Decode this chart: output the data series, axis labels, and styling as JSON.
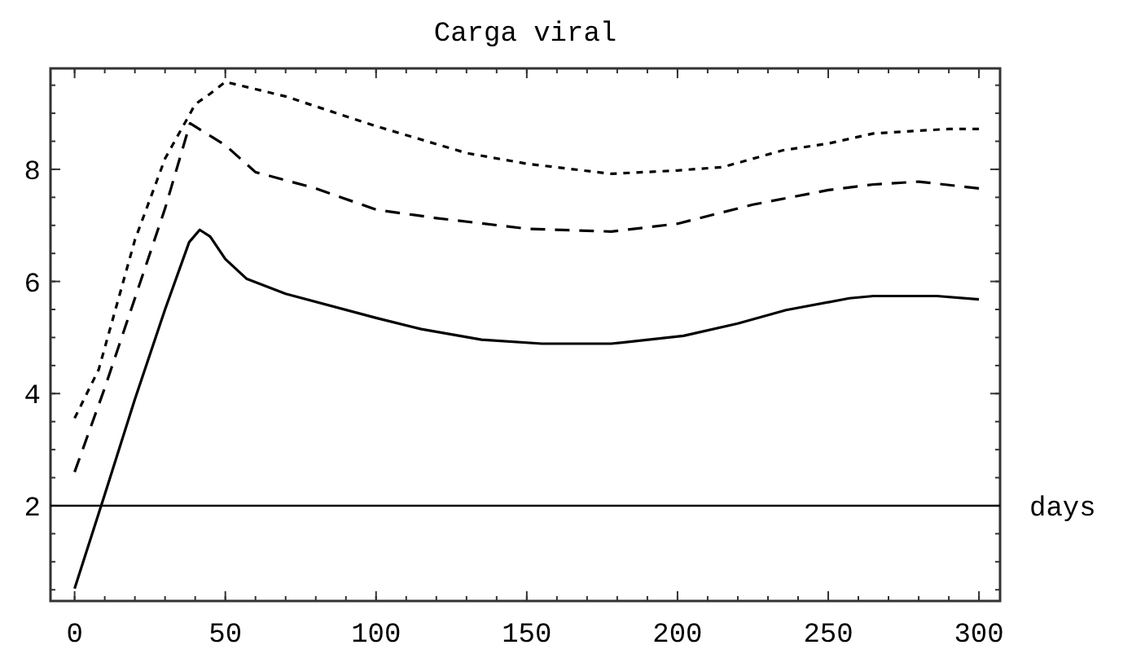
{
  "chart_data": {
    "type": "line",
    "title": "Carga viral",
    "xlim": [
      -8,
      307
    ],
    "ylim": [
      0.3,
      9.8
    ],
    "xticks": [
      0,
      50,
      100,
      150,
      200,
      250,
      300
    ],
    "yticks": [
      2,
      4,
      6,
      8
    ],
    "grid": false,
    "series": [
      {
        "color": "#000000",
        "line_style": "solid",
        "x": [
          0,
          10,
          20,
          30,
          38,
          41.5,
          45,
          50,
          57,
          70,
          100,
          115,
          135,
          155,
          178,
          202,
          220,
          236,
          257,
          265,
          286,
          300
        ],
        "values": [
          0.52,
          2.2,
          3.9,
          5.5,
          6.7,
          6.92,
          6.8,
          6.4,
          6.05,
          5.78,
          5.35,
          5.15,
          4.96,
          4.89,
          4.89,
          5.03,
          5.25,
          5.49,
          5.7,
          5.74,
          5.74,
          5.68
        ]
      },
      {
        "color": "#000000",
        "line_style": "dashed",
        "x": [
          0,
          10,
          20,
          30,
          38.3,
          50,
          60,
          80,
          100,
          120,
          150,
          178,
          200,
          225,
          250,
          265,
          280,
          300
        ],
        "values": [
          2.6,
          4.1,
          5.7,
          7.3,
          8.82,
          8.43,
          7.95,
          7.66,
          7.28,
          7.13,
          6.94,
          6.89,
          7.03,
          7.37,
          7.63,
          7.73,
          7.78,
          7.66
        ]
      },
      {
        "color": "#000000",
        "line_style": "dotted",
        "x": [
          0,
          8,
          20,
          30,
          40,
          45,
          50,
          70,
          100,
          130,
          150,
          178,
          200,
          215,
          235,
          250,
          265,
          290,
          300
        ],
        "values": [
          3.56,
          4.43,
          6.74,
          8.19,
          9.16,
          9.35,
          9.56,
          9.3,
          8.77,
          8.29,
          8.1,
          7.92,
          7.98,
          8.04,
          8.34,
          8.46,
          8.64,
          8.72,
          8.72
        ]
      }
    ],
    "ref_lines": [
      {
        "axis": "y",
        "value": 2,
        "label": "days",
        "color": "#000000"
      }
    ]
  }
}
